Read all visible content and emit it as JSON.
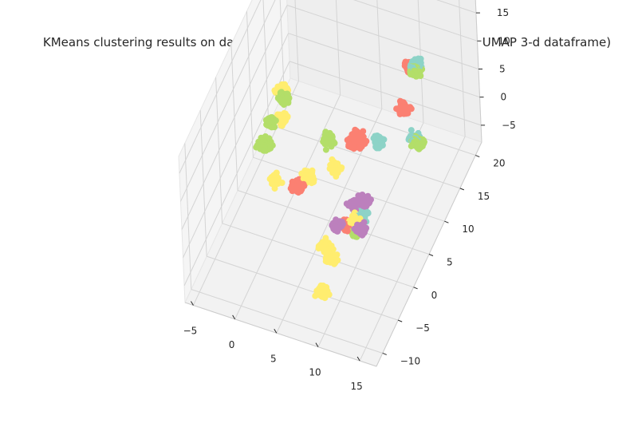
{
  "chart_data": {
    "type": "scatter",
    "projection": "3d",
    "title": "KMeans clustering results on data transformed by tSNE (visualized using UMAP 3-d dataframe)",
    "xlabel": "",
    "ylabel": "",
    "zlabel": "",
    "grid": true,
    "legend": "none",
    "xlim": [
      -6,
      17
    ],
    "ylim": [
      -12,
      22
    ],
    "zlim": [
      -8,
      18
    ],
    "x_ticks": [
      "−5",
      "0",
      "5",
      "10",
      "15"
    ],
    "y_ticks": [
      "−10",
      "−5",
      "0",
      "5",
      "10",
      "15",
      "20"
    ],
    "z_ticks": [
      "−5",
      "0",
      "5",
      "10",
      "15"
    ],
    "cluster_colors": [
      "#8dd3c7",
      "#fb8072",
      "#b3de69",
      "#ffed6f",
      "#bc80bd"
    ],
    "clusters": [
      {
        "color": "#8dd3c7",
        "centers": [
          [
            10.5,
            19.5,
            5.5
          ],
          [
            12.0,
            14.5,
            -1.0
          ],
          [
            9.5,
            4.0,
            -3.5
          ],
          [
            10.0,
            8.5,
            4.5
          ]
        ]
      },
      {
        "color": "#fb8072",
        "centers": [
          [
            9.5,
            20.0,
            4.0
          ],
          [
            9.5,
            17.5,
            -0.5
          ],
          [
            5.0,
            14.5,
            -4.0
          ],
          [
            1.5,
            4.5,
            -3.0
          ],
          [
            8.0,
            3.0,
            -5.0
          ],
          [
            6.5,
            9.5,
            1.5
          ],
          [
            8.5,
            6.5,
            6.0
          ]
        ]
      },
      {
        "color": "#b3de69",
        "centers": [
          [
            -2.0,
            10.0,
            4.5
          ],
          [
            -3.0,
            8.5,
            1.5
          ],
          [
            -3.0,
            6.0,
            0.5
          ],
          [
            -3.5,
            8.0,
            -2.0
          ],
          [
            3.5,
            9.5,
            0.5
          ],
          [
            12.5,
            14.0,
            -1.0
          ],
          [
            10.5,
            19.0,
            5.0
          ],
          [
            9.0,
            3.0,
            -5.5
          ]
        ]
      },
      {
        "color": "#ffed6f",
        "centers": [
          [
            -2.5,
            11.0,
            4.5
          ],
          [
            -2.5,
            10.5,
            0.0
          ],
          [
            -1.0,
            4.0,
            -2.5
          ],
          [
            2.5,
            5.5,
            -2.0
          ],
          [
            6.5,
            0.0,
            -6.0
          ],
          [
            9.0,
            3.0,
            -3.5
          ],
          [
            8.0,
            -2.0,
            -5.0
          ],
          [
            9.0,
            -7.5,
            -4.0
          ],
          [
            5.0,
            7.5,
            -1.5
          ]
        ]
      },
      {
        "color": "#bc80bd",
        "centers": [
          [
            8.5,
            4.5,
            -3.0
          ],
          [
            9.5,
            4.5,
            -1.5
          ],
          [
            10.0,
            2.0,
            -3.5
          ],
          [
            7.5,
            1.0,
            -3.0
          ]
        ]
      }
    ]
  }
}
